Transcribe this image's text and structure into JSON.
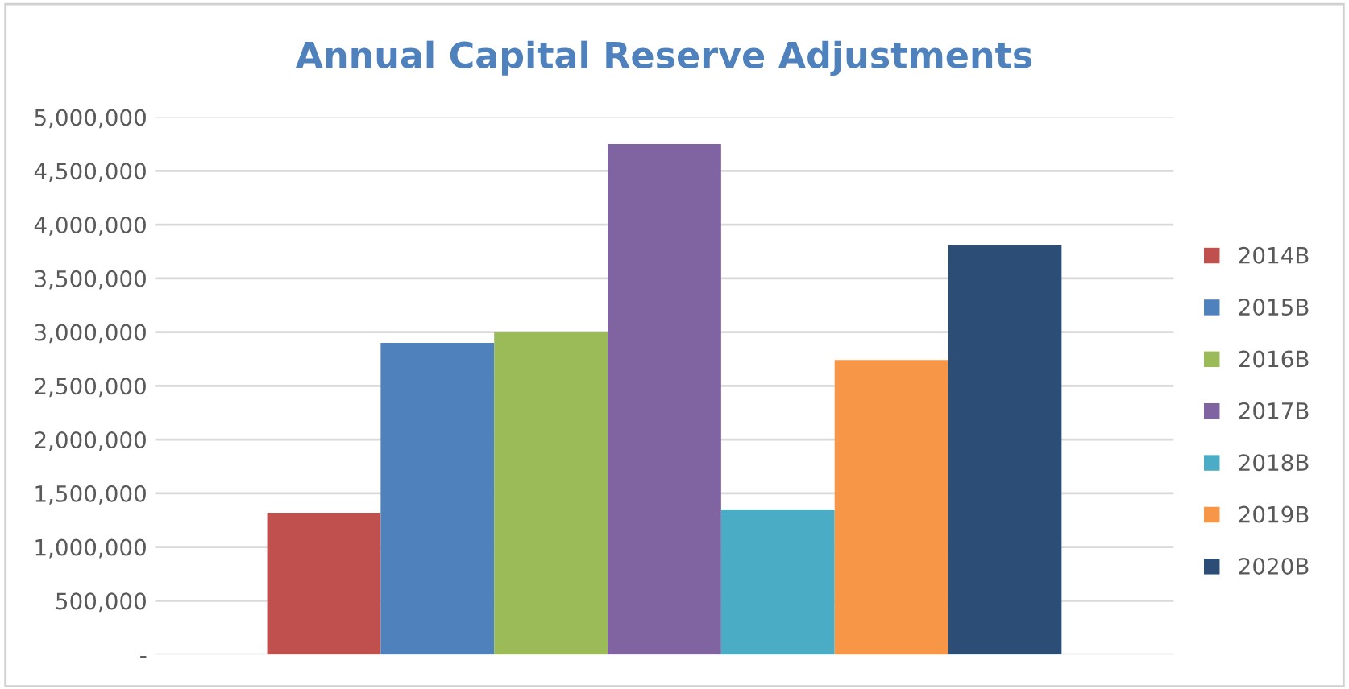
{
  "chart_data": {
    "type": "bar",
    "title": "Annual Capital Reserve Adjustments",
    "categories": [
      null
    ],
    "series": [
      {
        "name": "2014B",
        "color": "#c0504d",
        "values": [
          1320000
        ]
      },
      {
        "name": "2015B",
        "color": "#4f81bd",
        "values": [
          2900000
        ]
      },
      {
        "name": "2016B",
        "color": "#9bbb59",
        "values": [
          3000000
        ]
      },
      {
        "name": "2017B",
        "color": "#8064a2",
        "values": [
          4750000
        ]
      },
      {
        "name": "2018B",
        "color": "#4bacc6",
        "values": [
          1350000
        ]
      },
      {
        "name": "2019B",
        "color": "#f79646",
        "values": [
          2740000
        ]
      },
      {
        "name": "2020B",
        "color": "#2c4d75",
        "values": [
          3810000
        ]
      }
    ],
    "ylim": [
      0,
      5000000
    ],
    "yticks": [
      {
        "value": 0,
        "label": "-"
      },
      {
        "value": 500000,
        "label": "500,000"
      },
      {
        "value": 1000000,
        "label": "1,000,000"
      },
      {
        "value": 1500000,
        "label": "1,500,000"
      },
      {
        "value": 2000000,
        "label": "2,000,000"
      },
      {
        "value": 2500000,
        "label": "2,500,000"
      },
      {
        "value": 3000000,
        "label": "3,000,000"
      },
      {
        "value": 3500000,
        "label": "3,500,000"
      },
      {
        "value": 4000000,
        "label": "4,000,000"
      },
      {
        "value": 4500000,
        "label": "4,500,000"
      },
      {
        "value": 5000000,
        "label": "5,000,000"
      }
    ],
    "grid": "y",
    "legend": "right",
    "tick_labels": "y"
  }
}
